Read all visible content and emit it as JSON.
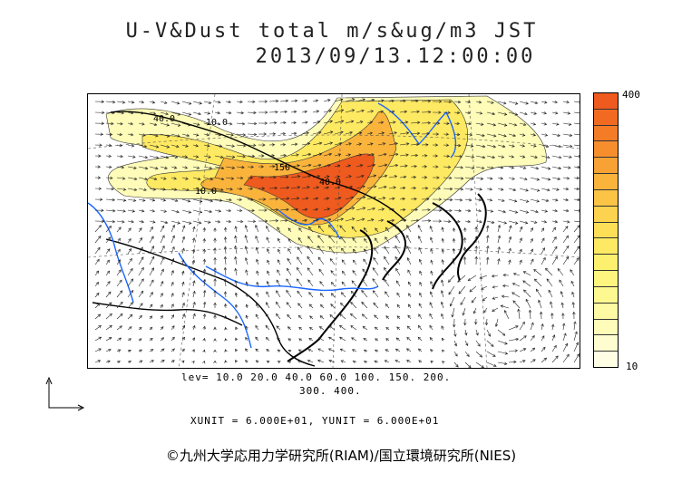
{
  "title_line1": "U-V&Dust total m/s&ug/m3 JST",
  "title_line2": "2013/09/13.12:00:00",
  "colorbar": {
    "max_label": "400",
    "min_label": "10",
    "colors": [
      "#ef5a1e",
      "#f26a22",
      "#f47c27",
      "#f68e2d",
      "#f8a235",
      "#fab43c",
      "#fbc445",
      "#fcd24e",
      "#fddf57",
      "#fee962",
      "#fef06f",
      "#fef57e",
      "#fef890",
      "#fefaa3",
      "#fefcb8",
      "#fefdcf",
      "#fffee5"
    ]
  },
  "contour_labels": [
    "40.0",
    "10.0",
    "150",
    "10.0",
    "40.0"
  ],
  "levels_line1": "lev= 10.0 20.0 40.0 60.0 100. 150. 200.",
  "levels_line2": "300. 400.",
  "units_line": "XUNIT = 6.000E+01, YUNIT = 6.000E+01",
  "copyright": "©九州大学応用力学研究所(RIAM)/国立環境研究所(NIES)"
}
